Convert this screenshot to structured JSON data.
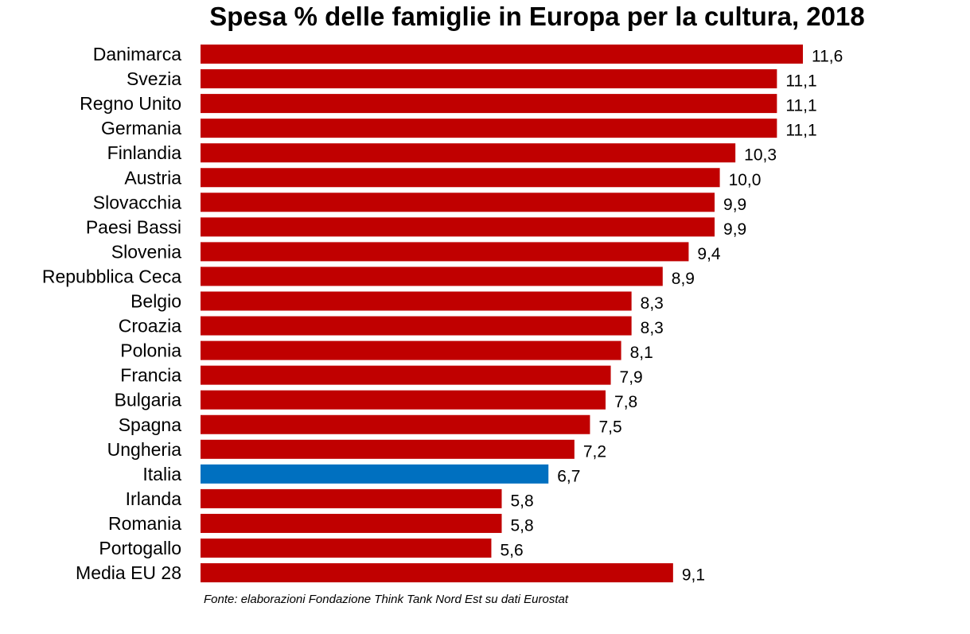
{
  "chart_data": {
    "type": "bar",
    "orientation": "horizontal",
    "title": "Spesa % delle famiglie in Europa per la cultura, 2018",
    "categories": [
      "Danimarca",
      "Svezia",
      "Regno Unito",
      "Germania",
      "Finlandia",
      "Austria",
      "Slovacchia",
      "Paesi Bassi",
      "Slovenia",
      "Repubblica Ceca",
      "Belgio",
      "Croazia",
      "Polonia",
      "Francia",
      "Bulgaria",
      "Spagna",
      "Ungheria",
      "Italia",
      "Irlanda",
      "Romania",
      "Portogallo",
      "Media EU 28"
    ],
    "values": [
      11.6,
      11.1,
      11.1,
      11.1,
      10.3,
      10.0,
      9.9,
      9.9,
      9.4,
      8.9,
      8.3,
      8.3,
      8.1,
      7.9,
      7.8,
      7.5,
      7.2,
      6.7,
      5.8,
      5.8,
      5.6,
      9.1
    ],
    "value_labels": [
      "11,6",
      "11,1",
      "11,1",
      "11,1",
      "10,3",
      "10,0",
      "9,9",
      "9,9",
      "9,4",
      "8,9",
      "8,3",
      "8,3",
      "8,1",
      "7,9",
      "7,8",
      "7,5",
      "7,2",
      "6,7",
      "5,8",
      "5,8",
      "5,6",
      "9,1"
    ],
    "highlight": "Italia",
    "xlim": [
      0,
      11.6
    ],
    "grid": false,
    "legend": "none",
    "colors": {
      "bar": "#C00000",
      "highlight": "#0070C0"
    }
  },
  "source": "Fonte: elaborazioni Fondazione  Think Tank Nord Est su dati Eurostat"
}
